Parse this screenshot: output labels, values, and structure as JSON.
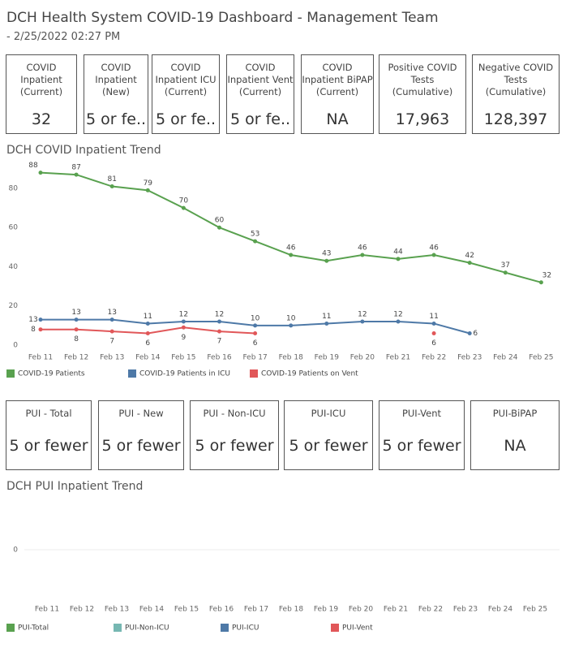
{
  "header": {
    "title": "DCH Health System COVID-19 Dashboard - Management Team",
    "subtitle": "- 2/25/2022 02:27 PM"
  },
  "kpis": [
    {
      "label": [
        "COVID",
        "Inpatient",
        "(Current)"
      ],
      "value": 32
    },
    {
      "label": [
        "COVID",
        "Inpatient",
        "(New)"
      ],
      "value": "5 or fe.."
    },
    {
      "label": [
        "COVID",
        "Inpatient ICU",
        "(Current)"
      ],
      "value": "5 or fe.."
    },
    {
      "label": [
        "COVID",
        "Inpatient Vent",
        "(Current)"
      ],
      "value": "5 or fe.."
    },
    {
      "label": [
        "COVID",
        "Inpatient BiPAP",
        "(Current)"
      ],
      "value": "NA"
    },
    {
      "label": [
        "Positive COVID",
        "Tests",
        "(Cumulative)"
      ],
      "value": "17,963"
    },
    {
      "label": [
        "Negative COVID",
        "Tests",
        "(Cumulative)"
      ],
      "value": "128,397"
    }
  ],
  "pui_cards": [
    {
      "label": "PUI - Total",
      "value": "5 or fewer"
    },
    {
      "label": "PUI - New",
      "value": "5 or fewer"
    },
    {
      "label": "PUI - Non-ICU",
      "value": "5 or fewer"
    },
    {
      "label": "PUI-ICU",
      "value": "5 or fewer"
    },
    {
      "label": "PUI-Vent",
      "value": "5 or fewer"
    },
    {
      "label": "PUI-BiPAP",
      "value": "NA"
    }
  ],
  "chart_data": [
    {
      "type": "line",
      "title": "DCH COVID Inpatient Trend",
      "categories": [
        "Feb 11",
        "Feb 12",
        "Feb 13",
        "Feb 14",
        "Feb 15",
        "Feb 16",
        "Feb 17",
        "Feb 18",
        "Feb 19",
        "Feb 20",
        "Feb 21",
        "Feb 22",
        "Feb 23",
        "Feb 24",
        "Feb 25"
      ],
      "series": [
        {
          "name": "COVID-19 Patients",
          "color": "#59a14f",
          "values": [
            88,
            87,
            81,
            79,
            70,
            60,
            53,
            46,
            43,
            46,
            44,
            46,
            42,
            37,
            32
          ]
        },
        {
          "name": "COVID-19 Patients in ICU",
          "color": "#4e79a7",
          "values": [
            13,
            13,
            13,
            11,
            12,
            12,
            10,
            10,
            11,
            12,
            12,
            11,
            6,
            null,
            null
          ]
        },
        {
          "name": "COVID-19 Patients on Vent",
          "color": "#e15759",
          "values": [
            8,
            8,
            7,
            6,
            9,
            7,
            6,
            null,
            null,
            null,
            null,
            6,
            null,
            null,
            null
          ]
        }
      ],
      "ylim": [
        0,
        92
      ],
      "yticks": [
        0,
        20,
        40,
        60,
        80
      ],
      "grid": false,
      "data_labels": true
    },
    {
      "type": "line",
      "title": "DCH PUI Inpatient Trend",
      "categories": [
        "Feb 11",
        "Feb 12",
        "Feb 13",
        "Feb 14",
        "Feb 15",
        "Feb 16",
        "Feb 17",
        "Feb 18",
        "Feb 19",
        "Feb 20",
        "Feb 21",
        "Feb 22",
        "Feb 23",
        "Feb 24",
        "Feb 25"
      ],
      "series": [
        {
          "name": "PUI-Total",
          "color": "#59a14f",
          "values": [
            null,
            null,
            null,
            null,
            null,
            null,
            null,
            null,
            null,
            null,
            null,
            null,
            null,
            null,
            null
          ]
        },
        {
          "name": "PUI-Non-ICU",
          "color": "#76b7b2",
          "values": [
            null,
            null,
            null,
            null,
            null,
            null,
            null,
            null,
            null,
            null,
            null,
            null,
            null,
            null,
            null
          ]
        },
        {
          "name": "PUI-ICU",
          "color": "#4e79a7",
          "values": [
            null,
            null,
            null,
            null,
            null,
            null,
            null,
            null,
            null,
            null,
            null,
            null,
            null,
            null,
            null
          ]
        },
        {
          "name": "PUI-Vent",
          "color": "#e15759",
          "values": [
            null,
            null,
            null,
            null,
            null,
            null,
            null,
            null,
            null,
            null,
            null,
            null,
            null,
            null,
            null
          ]
        }
      ],
      "ylim": [
        -1,
        1
      ],
      "yticks": [
        0
      ],
      "grid": true,
      "data_labels": true
    }
  ]
}
